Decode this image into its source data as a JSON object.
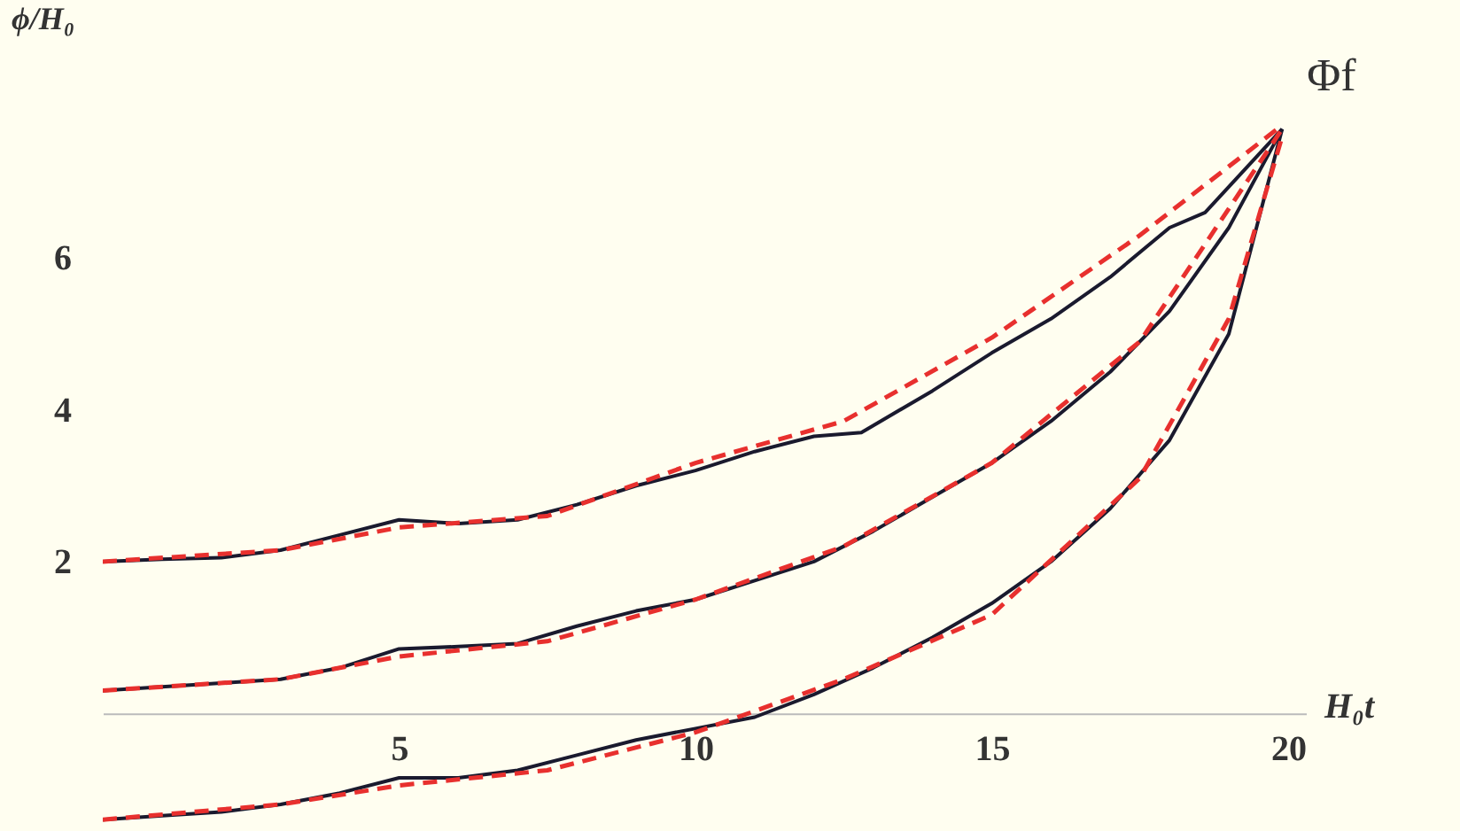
{
  "chart_data": {
    "type": "line",
    "xlabel": "H₀t",
    "ylabel": "ϕ/H₀",
    "xlim": [
      0,
      20.3
    ],
    "ylim": [
      -1.55,
      9.4
    ],
    "xticks": [
      5,
      10,
      15,
      20
    ],
    "yticks": [
      2,
      4,
      6
    ],
    "series": [
      {
        "color": "#1a1a2e",
        "line_style": "solid",
        "x": [
          0,
          1,
          2,
          3,
          4,
          5,
          6,
          7,
          8,
          9,
          10,
          11,
          12,
          12.8,
          14,
          15,
          16,
          17,
          18,
          18.6,
          19.9
        ],
        "values": [
          2.0,
          2.03,
          2.05,
          2.15,
          2.35,
          2.55,
          2.5,
          2.55,
          2.75,
          3.0,
          3.2,
          3.45,
          3.65,
          3.7,
          4.25,
          4.75,
          5.2,
          5.75,
          6.4,
          6.6,
          7.7
        ]
      },
      {
        "color": "#1a1a2e",
        "line_style": "solid",
        "x": [
          0,
          1,
          2,
          3,
          4,
          5,
          6,
          7,
          8,
          9,
          10,
          11,
          12,
          13,
          14,
          15,
          16,
          17,
          18,
          19,
          19.9
        ],
        "values": [
          0.3,
          0.35,
          0.4,
          0.45,
          0.6,
          0.85,
          0.88,
          0.92,
          1.15,
          1.35,
          1.5,
          1.75,
          2.0,
          2.4,
          2.85,
          3.3,
          3.85,
          4.5,
          5.3,
          6.4,
          7.7
        ]
      },
      {
        "color": "#1a1a2e",
        "line_style": "solid",
        "x": [
          0,
          1,
          2,
          3,
          4,
          5,
          6,
          7,
          8,
          9,
          10,
          11,
          12,
          13,
          14,
          15,
          16,
          17,
          18,
          19,
          19.9
        ],
        "values": [
          -1.4,
          -1.35,
          -1.3,
          -1.2,
          -1.05,
          -0.85,
          -0.85,
          -0.75,
          -0.55,
          -0.35,
          -0.2,
          -0.05,
          0.25,
          0.6,
          1.0,
          1.45,
          2.0,
          2.7,
          3.6,
          5.0,
          7.7
        ]
      },
      {
        "color": "#e8302e",
        "line_style": "dashed",
        "x": [
          0,
          3,
          5,
          7.5,
          10,
          12.5,
          15,
          17.5,
          19.9
        ],
        "values": [
          2.0,
          2.15,
          2.45,
          2.6,
          3.3,
          3.85,
          4.95,
          6.3,
          7.75
        ]
      },
      {
        "color": "#e8302e",
        "line_style": "dashed",
        "x": [
          0,
          3,
          5,
          7.5,
          10,
          12.5,
          15,
          17.5,
          19.9
        ],
        "values": [
          0.3,
          0.45,
          0.75,
          0.95,
          1.5,
          2.2,
          3.3,
          4.9,
          7.7
        ]
      },
      {
        "color": "#e8302e",
        "line_style": "dashed",
        "x": [
          0,
          3,
          5,
          7.5,
          10,
          12.5,
          15,
          17.5,
          19,
          19.9
        ],
        "values": [
          -1.4,
          -1.2,
          -0.95,
          -0.75,
          -0.25,
          0.45,
          1.3,
          3.1,
          5.2,
          7.6
        ]
      }
    ],
    "annotations": [
      {
        "text": "Φf",
        "x": 19.9,
        "y": 7.7
      }
    ]
  }
}
